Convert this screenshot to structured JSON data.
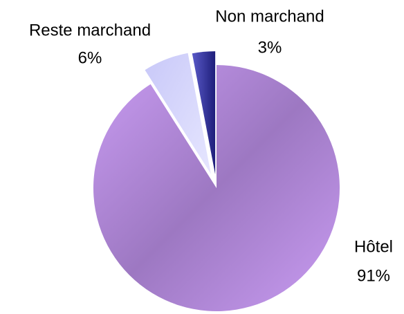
{
  "chart_data": {
    "type": "pie",
    "categories": [
      "Hôtel",
      "Reste marchand",
      "Non marchand"
    ],
    "values": [
      91,
      6,
      3
    ],
    "value_labels": [
      "91%",
      "6%",
      "3%"
    ],
    "colors": [
      "#a57fd0",
      "#d6d6fb",
      "#2e2e96"
    ]
  }
}
